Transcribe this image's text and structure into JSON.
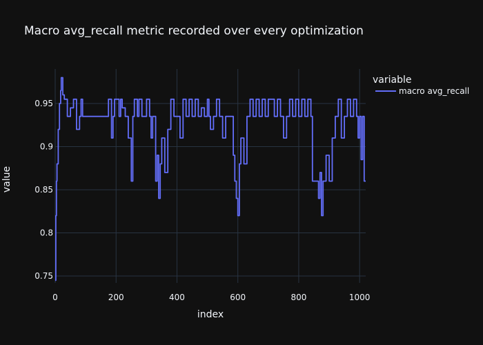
{
  "chart_data": {
    "type": "line",
    "title": "Macro avg_recall metric recorded over every optimization",
    "xlabel": "index",
    "ylabel": "value",
    "xlim": [
      0,
      1020
    ],
    "ylim": [
      0.742,
      0.99
    ],
    "x_ticks": [
      0,
      200,
      400,
      600,
      800,
      1000
    ],
    "y_ticks": [
      0.75,
      0.8,
      0.85,
      0.9,
      0.95
    ],
    "x_tick_labels": [
      "0",
      "200",
      "400",
      "600",
      "800",
      "1000"
    ],
    "y_tick_labels": [
      "0.75",
      "0.8",
      "0.85",
      "0.9",
      "0.95"
    ],
    "grid": true,
    "legend": {
      "title": "variable",
      "placement": "top-right"
    },
    "series": [
      {
        "name": "macro avg_recall",
        "color": "#636efa",
        "x": [
          0,
          2,
          4,
          6,
          10,
          14,
          18,
          20,
          25,
          30,
          35,
          40,
          50,
          60,
          70,
          80,
          85,
          90,
          100,
          120,
          140,
          160,
          175,
          185,
          190,
          195,
          200,
          210,
          215,
          220,
          230,
          240,
          250,
          255,
          260,
          270,
          275,
          285,
          300,
          310,
          315,
          320,
          330,
          335,
          340,
          345,
          350,
          360,
          370,
          380,
          390,
          400,
          410,
          420,
          430,
          440,
          450,
          460,
          470,
          480,
          490,
          500,
          505,
          510,
          520,
          530,
          540,
          550,
          560,
          570,
          580,
          585,
          590,
          595,
          600,
          605,
          610,
          620,
          630,
          640,
          650,
          660,
          670,
          680,
          690,
          700,
          720,
          730,
          740,
          750,
          760,
          770,
          780,
          790,
          800,
          810,
          820,
          830,
          840,
          845,
          850,
          855,
          860,
          865,
          870,
          875,
          880,
          890,
          900,
          910,
          920,
          930,
          940,
          950,
          960,
          970,
          980,
          990,
          995,
          1000,
          1005,
          1010,
          1015,
          1020
        ],
        "values": [
          0.745,
          0.82,
          0.86,
          0.88,
          0.92,
          0.95,
          0.965,
          0.98,
          0.96,
          0.955,
          0.955,
          0.935,
          0.945,
          0.955,
          0.92,
          0.935,
          0.955,
          0.935,
          0.935,
          0.935,
          0.935,
          0.935,
          0.955,
          0.91,
          0.935,
          0.955,
          0.955,
          0.935,
          0.955,
          0.945,
          0.935,
          0.91,
          0.86,
          0.935,
          0.955,
          0.935,
          0.955,
          0.935,
          0.955,
          0.935,
          0.91,
          0.935,
          0.86,
          0.89,
          0.84,
          0.88,
          0.91,
          0.87,
          0.92,
          0.955,
          0.935,
          0.935,
          0.91,
          0.955,
          0.935,
          0.955,
          0.935,
          0.955,
          0.935,
          0.945,
          0.935,
          0.955,
          0.935,
          0.92,
          0.935,
          0.955,
          0.935,
          0.91,
          0.935,
          0.935,
          0.935,
          0.89,
          0.86,
          0.84,
          0.82,
          0.88,
          0.91,
          0.88,
          0.935,
          0.955,
          0.935,
          0.955,
          0.935,
          0.955,
          0.935,
          0.955,
          0.935,
          0.955,
          0.935,
          0.91,
          0.935,
          0.955,
          0.935,
          0.955,
          0.935,
          0.955,
          0.935,
          0.955,
          0.935,
          0.86,
          0.86,
          0.86,
          0.86,
          0.84,
          0.87,
          0.82,
          0.86,
          0.89,
          0.86,
          0.91,
          0.935,
          0.955,
          0.91,
          0.935,
          0.955,
          0.935,
          0.955,
          0.935,
          0.91,
          0.935,
          0.885,
          0.935,
          0.86,
          0.86
        ]
      }
    ]
  }
}
